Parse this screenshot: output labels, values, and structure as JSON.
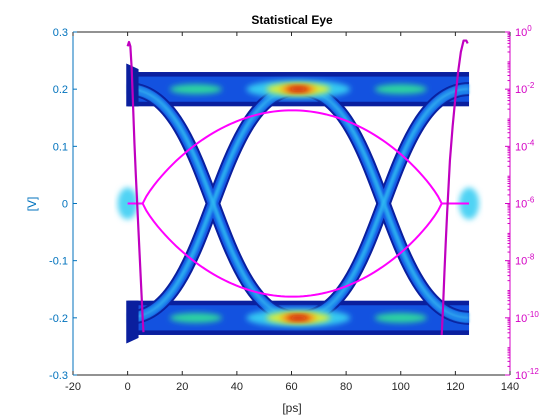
{
  "chart_data": {
    "type": "line",
    "title": "Statistical Eye",
    "xlabel": "[ps]",
    "ylabel": "[V]",
    "xlim": [
      -20,
      140
    ],
    "ylim": [
      -0.3,
      0.3
    ],
    "y2lim_log10": [
      -12,
      0
    ],
    "x_ticks": [
      "-20",
      "0",
      "20",
      "40",
      "60",
      "80",
      "100",
      "120",
      "140"
    ],
    "y_ticks": [
      "-0.3",
      "-0.2",
      "-0.1",
      "0",
      "0.1",
      "0.2",
      "0.3"
    ],
    "y2_ticks": [
      {
        "base": "10",
        "exp": "0"
      },
      {
        "base": "10",
        "exp": "-2"
      },
      {
        "base": "10",
        "exp": "-4"
      },
      {
        "base": "10",
        "exp": "-6"
      },
      {
        "base": "10",
        "exp": "-8"
      },
      {
        "base": "10",
        "exp": "-10"
      },
      {
        "base": "10",
        "exp": "-12"
      }
    ],
    "grid": false,
    "colors": {
      "left_axis": "#0072BD",
      "right_axis": "#D400C4",
      "contour": "#FF00FF",
      "bathtub": "#C000C0",
      "axes": "#262626"
    },
    "eye_levels_v": [
      0.2,
      -0.2
    ],
    "ui_ps": [
      0,
      125
    ],
    "eye_contour": {
      "x_left": 5.5,
      "x_right": 115,
      "height_v": 0.163
    },
    "bathtub_left": {
      "x": [
        0,
        0.5,
        1,
        1.5,
        2,
        2.5,
        3,
        3.5,
        4,
        4.5,
        5,
        5.5,
        5.8
      ],
      "log10_ber": [
        -0.5,
        -0.35,
        -0.5,
        -1.3,
        -2.6,
        -3.9,
        -5.0,
        -6.0,
        -7.0,
        -8.0,
        -9.0,
        -10.0,
        -10.5
      ]
    },
    "bathtub_right": {
      "x": [
        115,
        115.5,
        116,
        116.5,
        117,
        117.5,
        118,
        119,
        120,
        121,
        122,
        123,
        124,
        124.5
      ],
      "log10_ber": [
        -10.6,
        -9.6,
        -8.4,
        -7.3,
        -6.3,
        -5.4,
        -4.5,
        -3.3,
        -2.3,
        -1.4,
        -0.7,
        -0.3,
        -0.3,
        -0.4
      ]
    }
  }
}
